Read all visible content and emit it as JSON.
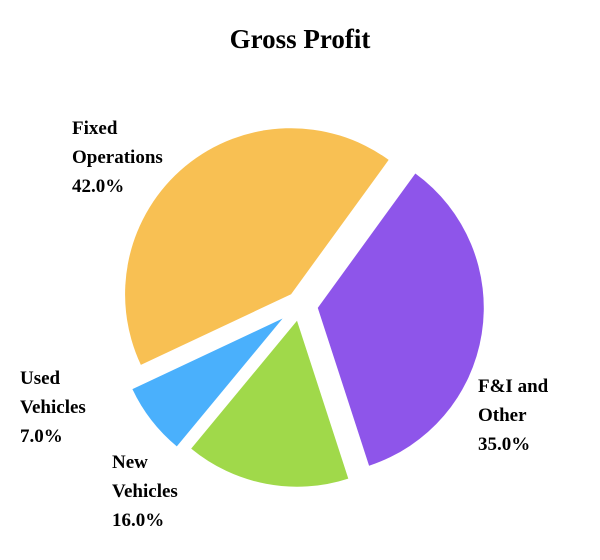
{
  "chart_data": {
    "type": "pie",
    "title": "Gross Profit",
    "categories": [
      "F&I and Other",
      "New Vehicles",
      "Used Vehicles",
      "Fixed Operations"
    ],
    "values": [
      35,
      16,
      7,
      42
    ],
    "value_labels": [
      "35.0%",
      "16.0%",
      "7.0%",
      "42.0%"
    ],
    "colors": [
      "#8e55ea",
      "#a0d94a",
      "#4ab0fc",
      "#f8c053"
    ]
  }
}
